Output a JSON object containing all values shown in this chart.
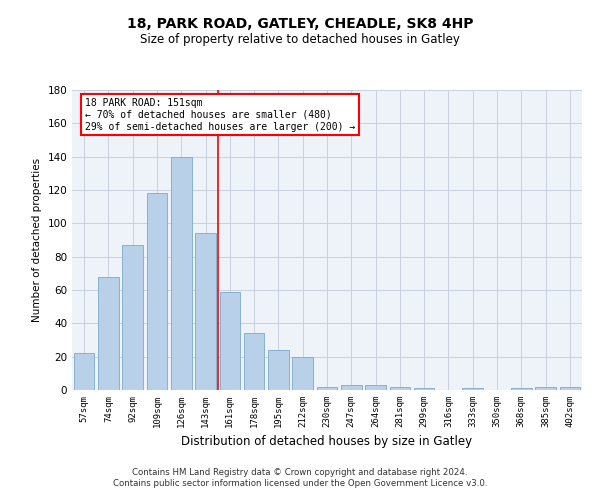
{
  "title_line1": "18, PARK ROAD, GATLEY, CHEADLE, SK8 4HP",
  "title_line2": "Size of property relative to detached houses in Gatley",
  "xlabel": "Distribution of detached houses by size in Gatley",
  "ylabel": "Number of detached properties",
  "bar_color": "#b8d0e8",
  "bar_edge_color": "#7aaaca",
  "categories": [
    "57sqm",
    "74sqm",
    "92sqm",
    "109sqm",
    "126sqm",
    "143sqm",
    "161sqm",
    "178sqm",
    "195sqm",
    "212sqm",
    "230sqm",
    "247sqm",
    "264sqm",
    "281sqm",
    "299sqm",
    "316sqm",
    "333sqm",
    "350sqm",
    "368sqm",
    "385sqm",
    "402sqm"
  ],
  "values": [
    22,
    68,
    87,
    118,
    140,
    94,
    59,
    34,
    24,
    20,
    2,
    3,
    3,
    2,
    1,
    0,
    1,
    0,
    1,
    2,
    2
  ],
  "vline_x": 5.5,
  "vline_color": "red",
  "ylim": [
    0,
    180
  ],
  "yticks": [
    0,
    20,
    40,
    60,
    80,
    100,
    120,
    140,
    160,
    180
  ],
  "annotation_text": "18 PARK ROAD: 151sqm\n← 70% of detached houses are smaller (480)\n29% of semi-detached houses are larger (200) →",
  "annotation_box_color": "white",
  "annotation_box_edge": "red",
  "footer_line1": "Contains HM Land Registry data © Crown copyright and database right 2024.",
  "footer_line2": "Contains public sector information licensed under the Open Government Licence v3.0.",
  "background_color": "#eef2f9",
  "grid_color": "#c8d0de"
}
